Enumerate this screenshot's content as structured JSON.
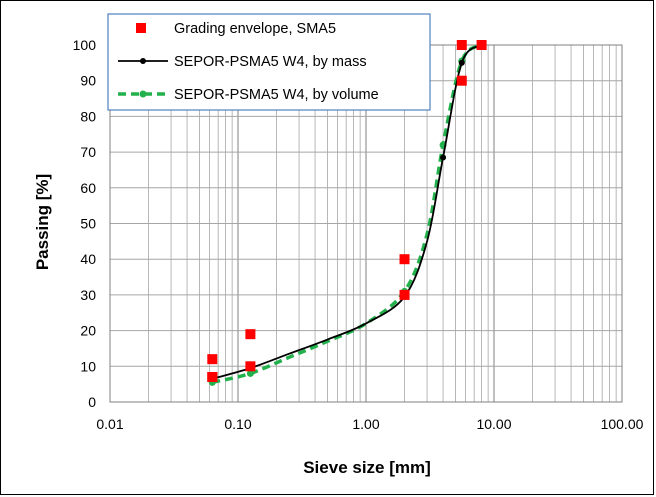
{
  "chart_data": {
    "type": "scatter",
    "xlabel": "Sieve size [mm]",
    "ylabel": "Passing [%]",
    "x_scale": "log",
    "xlim": [
      0.01,
      100
    ],
    "ylim": [
      0,
      100
    ],
    "x_ticks": [
      "0.01",
      "0.10",
      "1.00",
      "10.00",
      "100.00"
    ],
    "y_ticks": [
      "0",
      "10",
      "20",
      "30",
      "40",
      "50",
      "60",
      "70",
      "80",
      "90",
      "100"
    ],
    "grid": true,
    "legend_position": "top-left",
    "series": [
      {
        "name": "Grading envelope, SMA5",
        "style": "markers",
        "color": "#ff0000",
        "x": [
          0.063,
          0.063,
          0.063,
          0.125,
          0.125,
          2.0,
          2.0,
          5.6,
          5.6,
          8.0
        ],
        "y": [
          12,
          7,
          7,
          19,
          10,
          40,
          30,
          90,
          100,
          100
        ]
      },
      {
        "name": "SEPOR-PSMA5 W4, by mass",
        "style": "line",
        "color": "#000000",
        "x": [
          0.063,
          0.125,
          0.25,
          0.5,
          1.0,
          2.0,
          3.0,
          4.0,
          5.6,
          8.0
        ],
        "y": [
          6.5,
          9.5,
          13.5,
          17.5,
          22.0,
          29.5,
          45.0,
          68.5,
          95.0,
          100
        ],
        "markers_x": [
          0.063,
          0.125,
          2.0,
          4.0,
          5.6,
          8.0
        ],
        "markers_y": [
          6.5,
          9.5,
          29.5,
          68.5,
          95.0,
          100
        ]
      },
      {
        "name": "SEPOR-PSMA5 W4, by volume",
        "style": "dashed-line",
        "color": "#22b14c",
        "x": [
          0.063,
          0.125,
          0.25,
          0.5,
          1.0,
          2.0,
          3.0,
          4.0,
          5.6,
          8.0
        ],
        "y": [
          5.5,
          8.0,
          12.5,
          17.0,
          22.0,
          31.0,
          47.0,
          72.0,
          95.5,
          100
        ],
        "markers_x": [
          0.063,
          0.125,
          2.0,
          4.0,
          5.6,
          8.0
        ],
        "markers_y": [
          5.5,
          8.0,
          31.0,
          72.0,
          95.5,
          100
        ]
      }
    ]
  }
}
